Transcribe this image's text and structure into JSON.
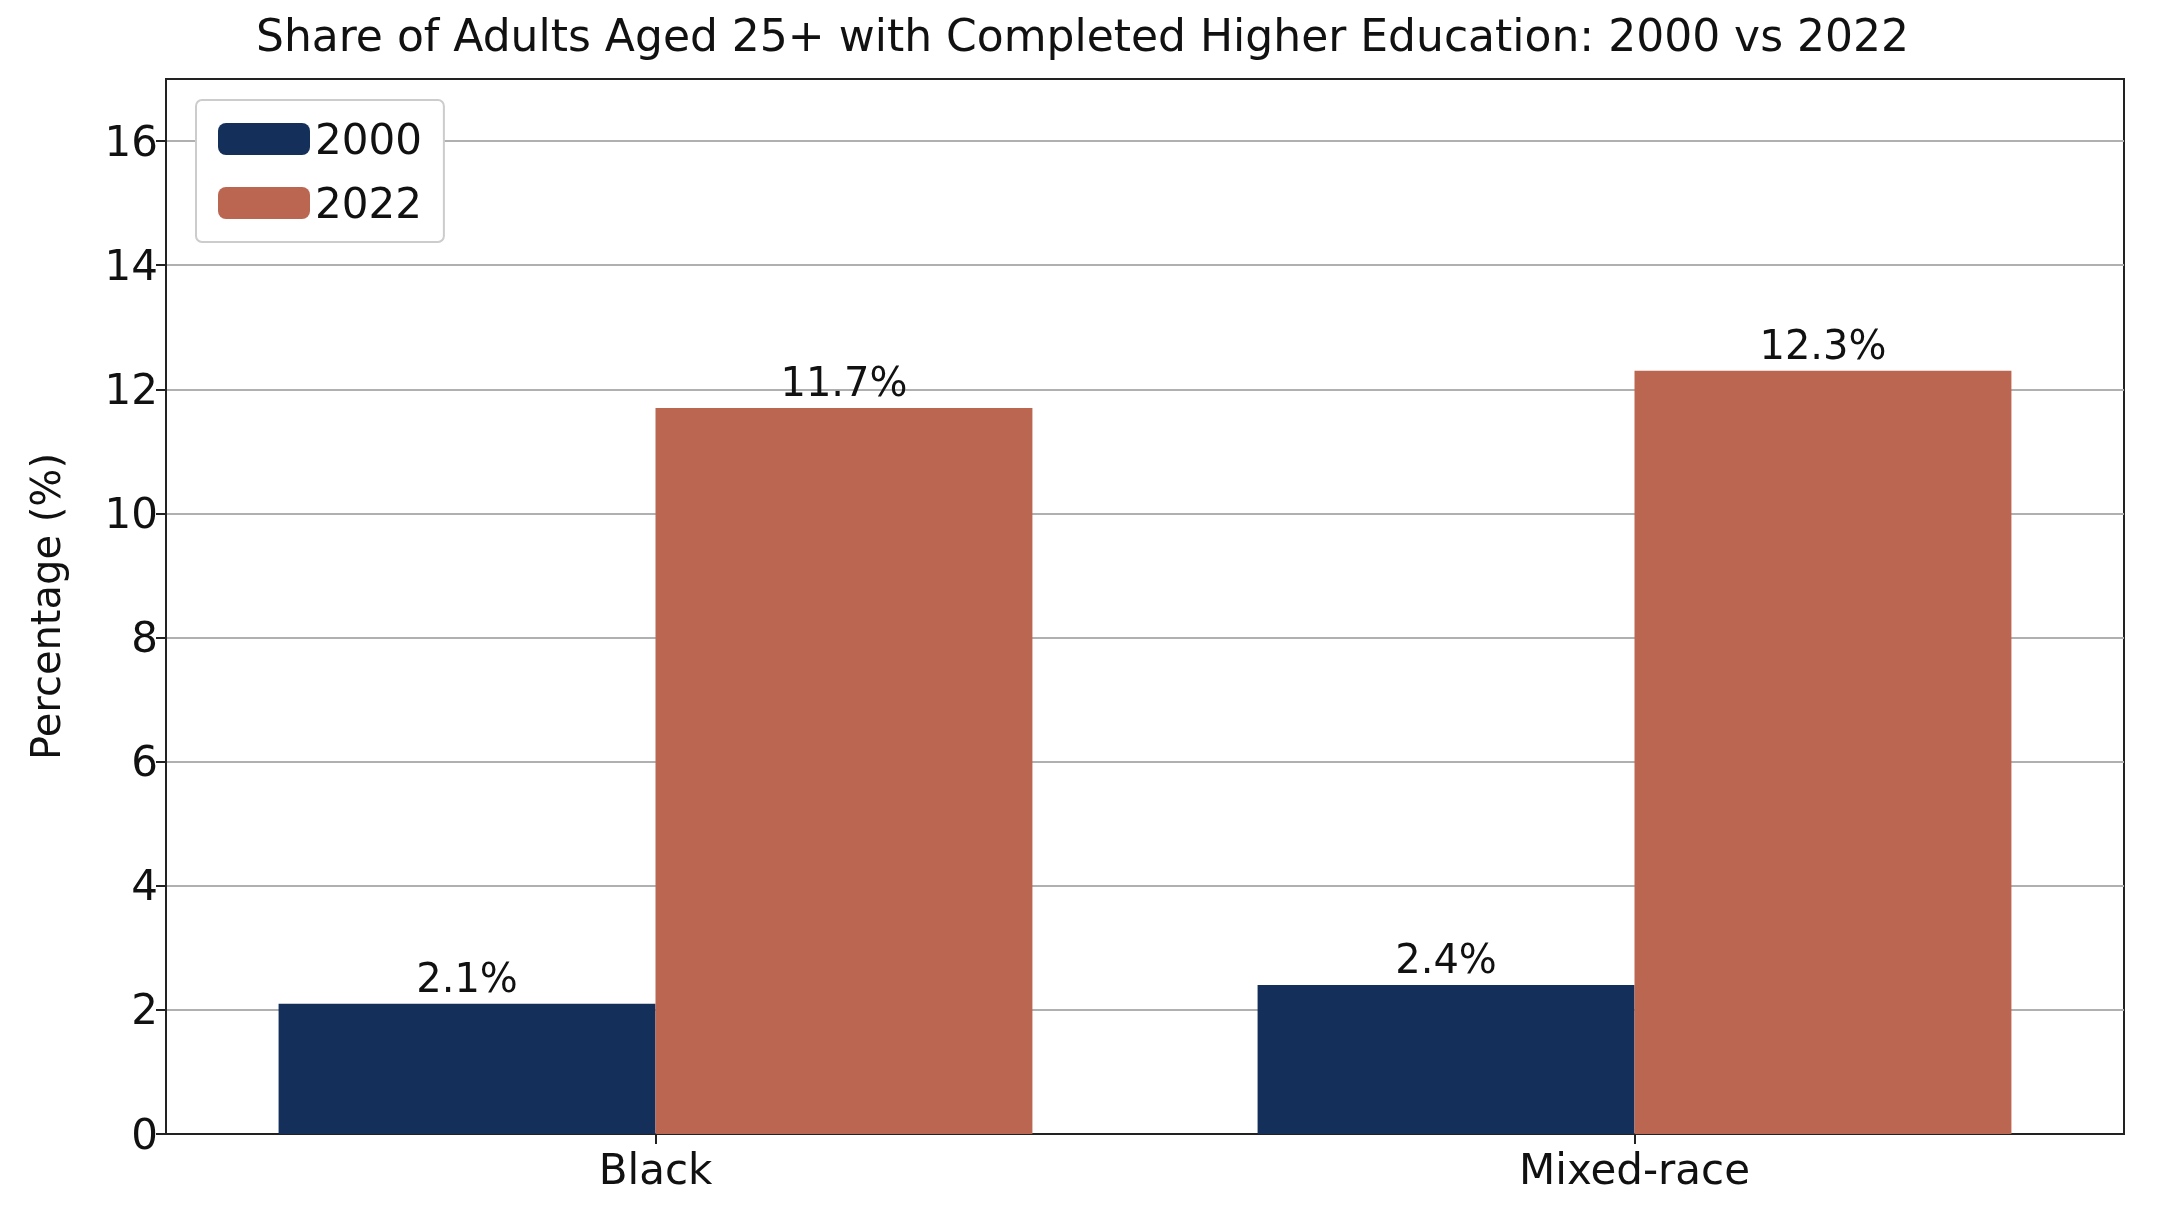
{
  "chart_data": {
    "type": "bar",
    "title": "Share of Adults Aged 25+ with Completed Higher Education: 2000 vs 2022",
    "ylabel": "Percentage (%)",
    "categories": [
      "Black",
      "Mixed-race"
    ],
    "series": [
      {
        "name": "2000",
        "color": "#14305a",
        "values": [
          2.1,
          2.4
        ],
        "value_labels": [
          "2.1%",
          "2.4%"
        ]
      },
      {
        "name": "2022",
        "color": "#bb6650",
        "values": [
          11.7,
          12.3
        ],
        "value_labels": [
          "11.7%",
          "12.3%"
        ]
      }
    ],
    "ylim": [
      0,
      17
    ],
    "yticks": [
      0,
      2,
      4,
      6,
      8,
      10,
      12,
      14,
      16
    ],
    "grid": "y",
    "legend": "top left"
  }
}
